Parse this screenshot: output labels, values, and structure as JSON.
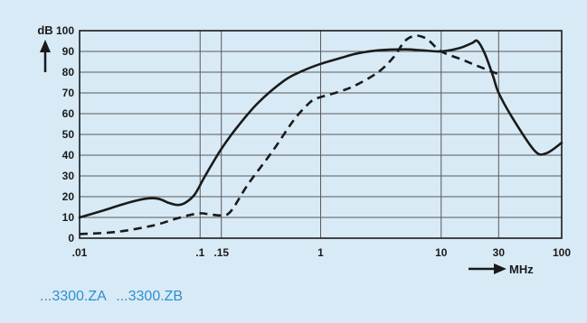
{
  "chart_data": {
    "type": "line",
    "x_scale": "log",
    "xlim": [
      0.01,
      100
    ],
    "ylim": [
      0,
      100
    ],
    "x_ticks": [
      0.01,
      0.1,
      0.15,
      1,
      10,
      30,
      100
    ],
    "x_tick_labels": [
      ".01",
      ".1",
      ".15",
      "1",
      "10",
      "30",
      "100"
    ],
    "y_ticks": [
      0,
      10,
      20,
      30,
      40,
      50,
      60,
      70,
      80,
      90,
      100
    ],
    "y_tick_labels": [
      "0",
      "10",
      "20",
      "30",
      "40",
      "50",
      "60",
      "70",
      "80",
      "90",
      "100"
    ],
    "ylabel": "dB",
    "xlabel": "MHz",
    "grid": true,
    "series": [
      {
        "name": "...3300.ZA",
        "style": "solid",
        "x": [
          0.01,
          0.015,
          0.025,
          0.035,
          0.045,
          0.055,
          0.065,
          0.075,
          0.09,
          0.11,
          0.15,
          0.2,
          0.3,
          0.5,
          0.7,
          1,
          1.5,
          2,
          3,
          5,
          7,
          10,
          14,
          18,
          20,
          23,
          27,
          30,
          40,
          60,
          75,
          100
        ],
        "y": [
          10,
          13,
          17,
          19,
          19,
          17,
          16,
          17,
          21,
          30,
          43,
          53,
          65,
          76,
          80.5,
          84,
          87,
          89,
          90.5,
          91,
          90.5,
          90,
          91.5,
          94,
          95,
          89,
          78,
          70,
          57,
          42,
          41,
          46
        ]
      },
      {
        "name": "...3300.ZB",
        "style": "dashed",
        "x": [
          0.01,
          0.02,
          0.04,
          0.06,
          0.08,
          0.1,
          0.12,
          0.15,
          0.18,
          0.25,
          0.4,
          0.6,
          0.8,
          0.9,
          1,
          1.5,
          2,
          3,
          4,
          5,
          6,
          7,
          8,
          10,
          15,
          20,
          30
        ],
        "y": [
          2,
          3,
          6,
          9,
          11,
          12,
          11.5,
          11,
          13,
          26,
          42,
          57,
          65,
          67,
          68,
          71,
          74,
          80,
          87,
          95,
          97.5,
          97,
          95,
          90,
          86,
          83,
          79
        ]
      }
    ],
    "legend": [
      "...3300.ZA",
      "...3300.ZB"
    ],
    "colors": {
      "background": "#d8eaf6",
      "line": "#1a1a1a",
      "grid": "#5a5a5a",
      "legend_text": "#2f8fd0"
    }
  }
}
